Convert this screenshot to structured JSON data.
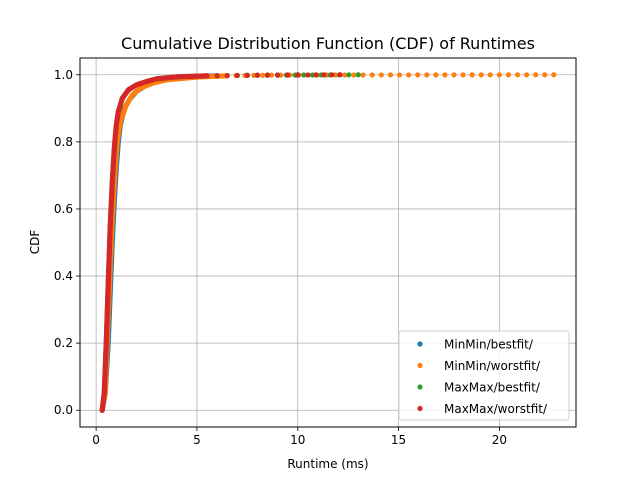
{
  "chart_data": {
    "type": "scatter",
    "title": "Cumulative Distribution Function (CDF) of Runtimes",
    "xlabel": "Runtime (ms)",
    "ylabel": "CDF",
    "xlim": [
      -0.8,
      23.8
    ],
    "ylim": [
      -0.05,
      1.05
    ],
    "xticks": [
      0,
      5,
      10,
      15,
      20
    ],
    "yticks": [
      0.0,
      0.2,
      0.4,
      0.6,
      0.8,
      1.0
    ],
    "grid": true,
    "legend_position": "lower-right",
    "series": [
      {
        "name": "MinMin/bestfit/",
        "color": "#1f77b4",
        "x": [
          0.3,
          0.45,
          0.6,
          0.7,
          0.8,
          0.9,
          1.0,
          1.1,
          1.2,
          1.4,
          1.7,
          2.0,
          2.5,
          3.0,
          4.0,
          5.0,
          6.0,
          7.0,
          8.0,
          10.0
        ],
        "y": [
          0.0,
          0.05,
          0.2,
          0.35,
          0.5,
          0.62,
          0.72,
          0.8,
          0.85,
          0.9,
          0.93,
          0.95,
          0.97,
          0.98,
          0.99,
          0.995,
          0.997,
          0.998,
          0.999,
          1.0
        ]
      },
      {
        "name": "MinMin/worstfit/",
        "color": "#ff7f0e",
        "x": [
          0.3,
          0.45,
          0.55,
          0.65,
          0.75,
          0.85,
          0.95,
          1.05,
          1.2,
          1.5,
          1.8,
          2.2,
          2.8,
          3.5,
          5.0,
          6.5,
          8.7,
          14.6,
          22.7
        ],
        "y": [
          0.0,
          0.05,
          0.2,
          0.35,
          0.5,
          0.62,
          0.72,
          0.8,
          0.86,
          0.91,
          0.94,
          0.96,
          0.975,
          0.985,
          0.993,
          0.997,
          0.999,
          0.9995,
          1.0
        ]
      },
      {
        "name": "MaxMax/bestfit/",
        "color": "#2ca02c",
        "x": [
          0.3,
          0.4,
          0.5,
          0.6,
          0.7,
          0.8,
          0.9,
          1.0,
          1.1,
          1.3,
          1.6,
          2.0,
          2.5,
          3.0,
          4.0,
          5.5,
          7.0,
          9.0,
          11.6,
          13.0
        ],
        "y": [
          0.0,
          0.05,
          0.2,
          0.38,
          0.55,
          0.68,
          0.78,
          0.85,
          0.89,
          0.93,
          0.955,
          0.97,
          0.98,
          0.988,
          0.994,
          0.997,
          0.998,
          0.999,
          0.9995,
          1.0
        ]
      },
      {
        "name": "MaxMax/worstfit/",
        "color": "#d62728",
        "x": [
          0.3,
          0.4,
          0.5,
          0.6,
          0.7,
          0.8,
          0.9,
          1.0,
          1.1,
          1.3,
          1.6,
          2.0,
          2.5,
          3.0,
          4.0,
          5.5,
          7.0,
          8.5,
          10.5,
          12.1
        ],
        "y": [
          0.0,
          0.05,
          0.2,
          0.38,
          0.55,
          0.68,
          0.78,
          0.85,
          0.89,
          0.93,
          0.955,
          0.97,
          0.98,
          0.988,
          0.994,
          0.997,
          0.998,
          0.999,
          0.9995,
          1.0
        ]
      }
    ]
  }
}
